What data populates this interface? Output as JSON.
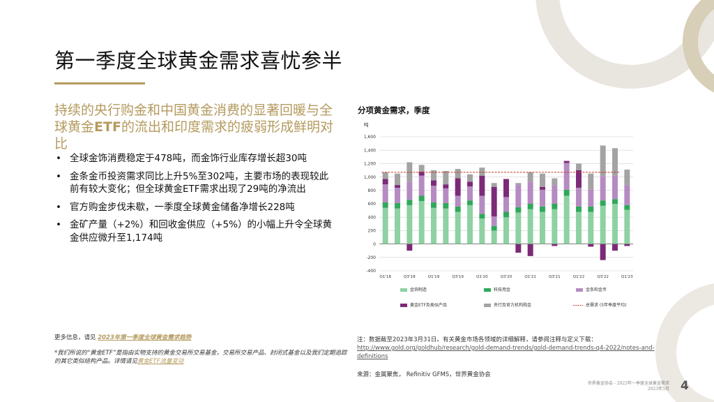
{
  "slide": {
    "title": "第一季度全球黄金需求喜忧参半",
    "subhead_part1": "持续的央行购金和中国黄金消费的显著回暖与全球黄金",
    "subhead_bold": "ETF",
    "subhead_part2": "的流出和印度需求的疲弱形成鲜明对比",
    "bullets": [
      "全球金饰消费稳定于478吨，而金饰行业库存增长超30吨",
      "金条金币投资需求同比上升5%至302吨，主要市场的表现较此前有较大变化；但全球黄金ETF需求出现了29吨的净流出",
      "官方购金步伐未歇，一季度全球黄金储备净增长228吨",
      "金矿产量（+2%）和回收金供应（+5%）的小幅上升令全球黄金供应微升至1,174吨"
    ],
    "footnote_prefix": "更多信息，请见 ",
    "footnote_link": "2023年第一季度全球黄金需求趋势",
    "footnote_note": "*我们所说的“黄金ETF”是指由实物支持的黄金交易所交易基金，交易所交易产品、封闭式基金以及我们定期追踪的其它类似结构产品。详情请见",
    "footnote_note_link": "黄金ETF流量变动",
    "chart_heading": "分项黄金需求，季度",
    "source_note": "注：数据截至2023年3月31日。有关黄金市场各领域的详细解释，请参阅注释与定义下载：",
    "source_url": "http://www.gold.org/goldhub/research/gold-demand-trends/gold-demand-trends-q4-2022/notes-and-definitions",
    "source_line": "来源：金属聚焦，  Refinitiv GFMS，世界黄金协会",
    "footer_line1": "世界黄金协会 - 2023年一季度全球黄金需求",
    "footer_line2": "2023年5月",
    "page_number": "4"
  },
  "colors": {
    "gold": "#b49a5e",
    "jewellery": "#8ed1a2",
    "technology": "#2fa85a",
    "bar_coin": "#b58bc2",
    "etf": "#7c2a78",
    "central_bank": "#a3a3a3",
    "total_line": "#c0392b"
  },
  "chart_data": {
    "type": "bar",
    "stacked": true,
    "ylabel": "吨",
    "ylim": [
      -400,
      1600
    ],
    "yticks": [
      -400,
      -200,
      0,
      200,
      400,
      600,
      800,
      1000,
      1200,
      1400,
      1600
    ],
    "categories": [
      "Q1'18",
      "Q2'18",
      "Q3'18",
      "Q4'18",
      "Q1'19",
      "Q2'19",
      "Q3'19",
      "Q4'19",
      "Q1'20",
      "Q2'20",
      "Q3'20",
      "Q4'20",
      "Q1'21",
      "Q2'21",
      "Q3'21",
      "Q4'21",
      "Q1'22",
      "Q2'22",
      "Q3'22",
      "Q4'22",
      "Q1'23"
    ],
    "tick_labels": [
      "Q1'18",
      "",
      "Q3'18",
      "",
      "Q1'19",
      "",
      "Q3'19",
      "",
      "Q1'20",
      "",
      "Q3'20",
      "",
      "Q1'21",
      "",
      "Q3'21",
      "",
      "Q1'22",
      "",
      "Q3'22",
      "",
      "Q1'23"
    ],
    "series": [
      {
        "name": "金饰制造",
        "key": "jewellery",
        "values": [
          540,
          530,
          580,
          640,
          540,
          530,
          480,
          580,
          380,
          200,
          400,
          470,
          520,
          480,
          520,
          720,
          480,
          480,
          570,
          600,
          510
        ]
      },
      {
        "name": "科技用金",
        "key": "technology",
        "values": [
          80,
          80,
          80,
          80,
          80,
          80,
          80,
          70,
          70,
          70,
          80,
          80,
          80,
          80,
          80,
          90,
          80,
          80,
          80,
          70,
          70
        ]
      },
      {
        "name": "金条和金币",
        "key": "bar_coin",
        "values": [
          270,
          230,
          270,
          300,
          250,
          220,
          160,
          210,
          270,
          140,
          220,
          330,
          330,
          250,
          280,
          400,
          280,
          250,
          360,
          350,
          300
        ]
      },
      {
        "name": "黄金ETF及类似产品",
        "key": "etf",
        "values": [
          80,
          40,
          -100,
          60,
          80,
          60,
          260,
          70,
          300,
          440,
          270,
          -130,
          -180,
          40,
          -30,
          30,
          260,
          -40,
          -240,
          -100,
          -30
        ]
      },
      {
        "name": "央行及官方机构购金",
        "key": "central_bank",
        "values": [
          100,
          170,
          290,
          100,
          150,
          200,
          140,
          110,
          120,
          60,
          0,
          30,
          140,
          200,
          100,
          0,
          100,
          240,
          460,
          410,
          230
        ]
      }
    ],
    "total_line": {
      "name": "总需求 (5年季度平均)",
      "value": 1070
    },
    "legend_position": "bottom"
  }
}
